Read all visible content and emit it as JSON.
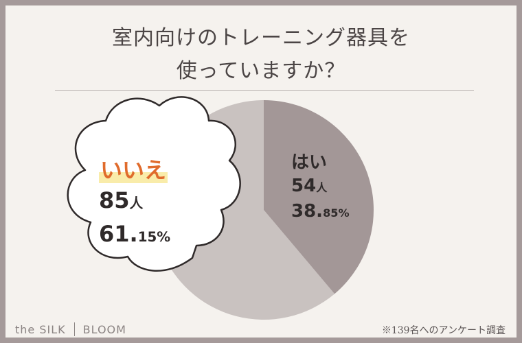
{
  "title_line1": "室内向けのトレーニング器具を",
  "title_line2": "使っていますか？",
  "chart_data": {
    "type": "pie",
    "title": "室内向けのトレーニング器具を使っていますか？",
    "slices": [
      {
        "label": "はい",
        "count": "54",
        "count_unit": "人",
        "percent_int": "38.",
        "percent_dec": "85%",
        "value": 38.85,
        "color": "#a39797"
      },
      {
        "label": "いいえ",
        "count": "85",
        "count_unit": "人",
        "percent_int": "61.",
        "percent_dec": "15%",
        "value": 61.15,
        "color": "#c9c2c0"
      }
    ]
  },
  "brand_left": "the SILK",
  "brand_right": "BLOOM",
  "footnote": "※139名へのアンケート調査",
  "colors": {
    "background_frame": "#a59a9a",
    "panel": "#f5f2ee",
    "accent": "#e06b2c",
    "highlight": "#f9ecaa"
  }
}
